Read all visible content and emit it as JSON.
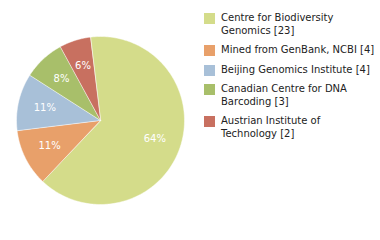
{
  "chart_data": {
    "type": "pie",
    "categories": [
      "Centre for Biodiversity\nGenomics [23]",
      "Mined from GenBank, NCBI [4]",
      "Beijing Genomics Institute [4]",
      "Canadian Centre for DNA\nBarcoding [3]",
      "Austrian Institute of\nTechnology [2]"
    ],
    "values": [
      64,
      11,
      11,
      8,
      6
    ],
    "value_labels": [
      "64%",
      "11%",
      "11%",
      "8%",
      "6%"
    ],
    "colors": [
      "#d4dc8a",
      "#e8a06a",
      "#a8c0d8",
      "#a8bf6a",
      "#c87060"
    ],
    "data_labels": true,
    "legend": "right"
  }
}
